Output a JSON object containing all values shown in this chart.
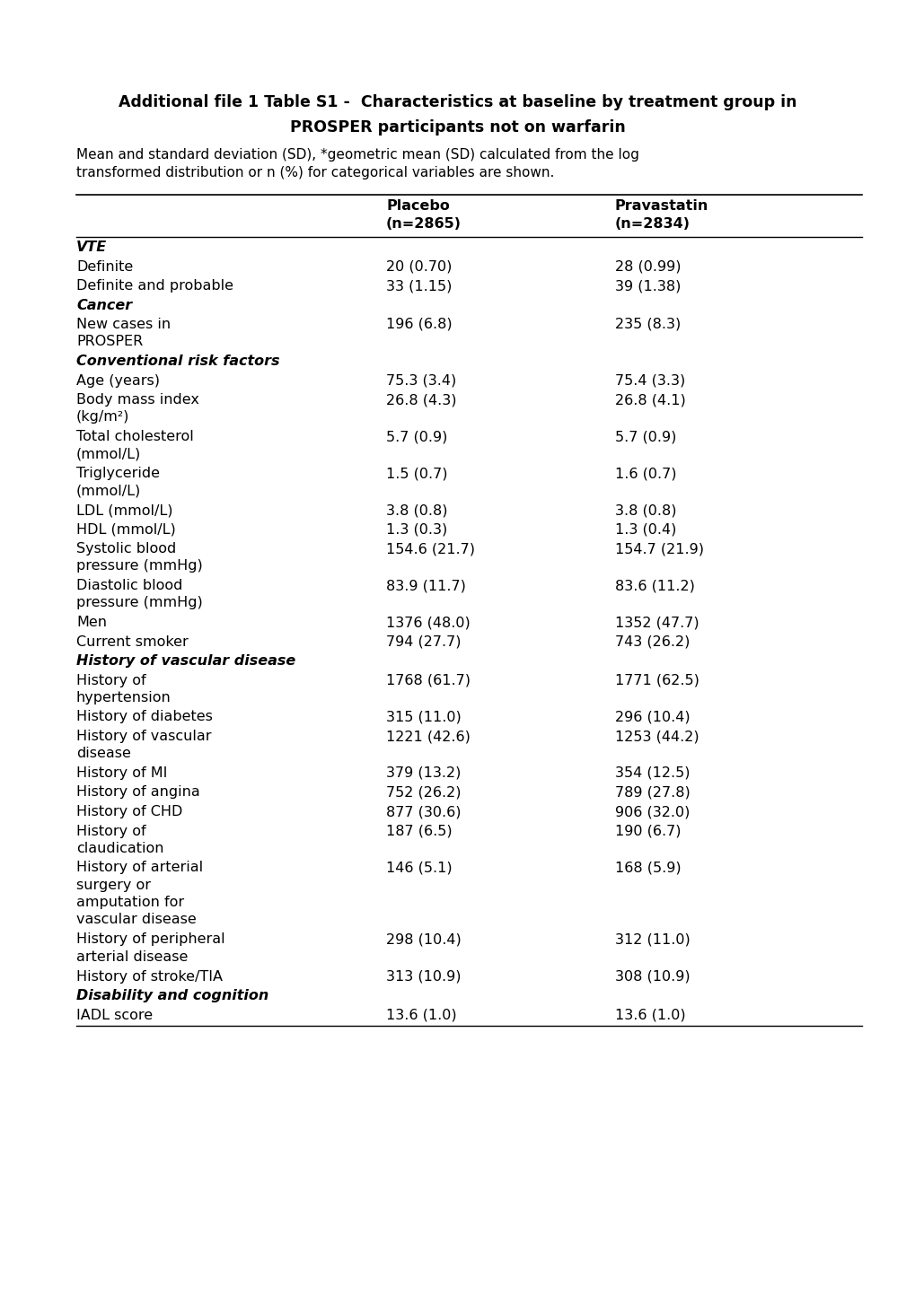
{
  "title_line1": "Additional file 1 Table S1 -  Characteristics at baseline by treatment group in",
  "title_line2": "PROSPER participants not on warfarin",
  "subtitle": "Mean and standard deviation (SD), *geometric mean (SD) calculated from the log\ntransformed distribution or n (%) for categorical variables are shown.",
  "rows": [
    {
      "label": "VTE",
      "bold_italic": true,
      "placebo": "",
      "pravastatin": ""
    },
    {
      "label": "Definite",
      "bold_italic": false,
      "placebo": "20 (0.70)",
      "pravastatin": "28 (0.99)"
    },
    {
      "label": "Definite and probable",
      "bold_italic": false,
      "placebo": "33 (1.15)",
      "pravastatin": "39 (1.38)"
    },
    {
      "label": "Cancer",
      "bold_italic": true,
      "placebo": "",
      "pravastatin": ""
    },
    {
      "label": "New cases in\nPROSPER",
      "bold_italic": false,
      "placebo": "196 (6.8)",
      "pravastatin": "235 (8.3)"
    },
    {
      "label": "Conventional risk factors",
      "bold_italic": true,
      "placebo": "",
      "pravastatin": ""
    },
    {
      "label": "Age (years)",
      "bold_italic": false,
      "placebo": "75.3 (3.4)",
      "pravastatin": "75.4 (3.3)"
    },
    {
      "label": "Body mass index\n(kg/m²)",
      "bold_italic": false,
      "placebo": "26.8 (4.3)",
      "pravastatin": "26.8 (4.1)"
    },
    {
      "label": "Total cholesterol\n(mmol/L)",
      "bold_italic": false,
      "placebo": "5.7 (0.9)",
      "pravastatin": "5.7 (0.9)"
    },
    {
      "label": "Triglyceride\n(mmol/L)",
      "bold_italic": false,
      "placebo": "1.5 (0.7)",
      "pravastatin": "1.6 (0.7)"
    },
    {
      "label": "LDL (mmol/L)",
      "bold_italic": false,
      "placebo": "3.8 (0.8)",
      "pravastatin": "3.8 (0.8)"
    },
    {
      "label": "HDL (mmol/L)",
      "bold_italic": false,
      "placebo": "1.3 (0.3)",
      "pravastatin": "1.3 (0.4)"
    },
    {
      "label": "Systolic blood\npressure (mmHg)",
      "bold_italic": false,
      "placebo": "154.6 (21.7)",
      "pravastatin": "154.7 (21.9)"
    },
    {
      "label": "Diastolic blood\npressure (mmHg)",
      "bold_italic": false,
      "placebo": "83.9 (11.7)",
      "pravastatin": "83.6 (11.2)"
    },
    {
      "label": "Men",
      "bold_italic": false,
      "placebo": "1376 (48.0)",
      "pravastatin": "1352 (47.7)"
    },
    {
      "label": "Current smoker",
      "bold_italic": false,
      "placebo": "794 (27.7)",
      "pravastatin": "743 (26.2)"
    },
    {
      "label": "History of vascular disease",
      "bold_italic": true,
      "placebo": "",
      "pravastatin": ""
    },
    {
      "label": "History of\nhypertension",
      "bold_italic": false,
      "placebo": "1768 (61.7)",
      "pravastatin": "1771 (62.5)"
    },
    {
      "label": "History of diabetes",
      "bold_italic": false,
      "placebo": "315 (11.0)",
      "pravastatin": "296 (10.4)"
    },
    {
      "label": "History of vascular\ndisease",
      "bold_italic": false,
      "placebo": "1221 (42.6)",
      "pravastatin": "1253 (44.2)"
    },
    {
      "label": "History of MI",
      "bold_italic": false,
      "placebo": "379 (13.2)",
      "pravastatin": "354 (12.5)"
    },
    {
      "label": "History of angina",
      "bold_italic": false,
      "placebo": "752 (26.2)",
      "pravastatin": "789 (27.8)"
    },
    {
      "label": "History of CHD",
      "bold_italic": false,
      "placebo": "877 (30.6)",
      "pravastatin": "906 (32.0)"
    },
    {
      "label": "History of\nclaudication",
      "bold_italic": false,
      "placebo": "187 (6.5)",
      "pravastatin": "190 (6.7)"
    },
    {
      "label": "History of arterial\nsurgery or\namputation for\nvascular disease",
      "bold_italic": false,
      "placebo": "146 (5.1)",
      "pravastatin": "168 (5.9)"
    },
    {
      "label": "History of peripheral\narterial disease",
      "bold_italic": false,
      "placebo": "298 (10.4)",
      "pravastatin": "312 (11.0)"
    },
    {
      "label": "History of stroke/TIA",
      "bold_italic": false,
      "placebo": "313 (10.9)",
      "pravastatin": "308 (10.9)"
    },
    {
      "label": "Disability and cognition",
      "bold_italic": true,
      "placebo": "",
      "pravastatin": ""
    },
    {
      "label": "IADL score",
      "bold_italic": false,
      "placebo": "13.6 (1.0)",
      "pravastatin": "13.6 (1.0)"
    }
  ],
  "background_color": "#ffffff",
  "font_size": 11.5,
  "title_font_size": 12.5,
  "subtitle_font_size": 11.0
}
